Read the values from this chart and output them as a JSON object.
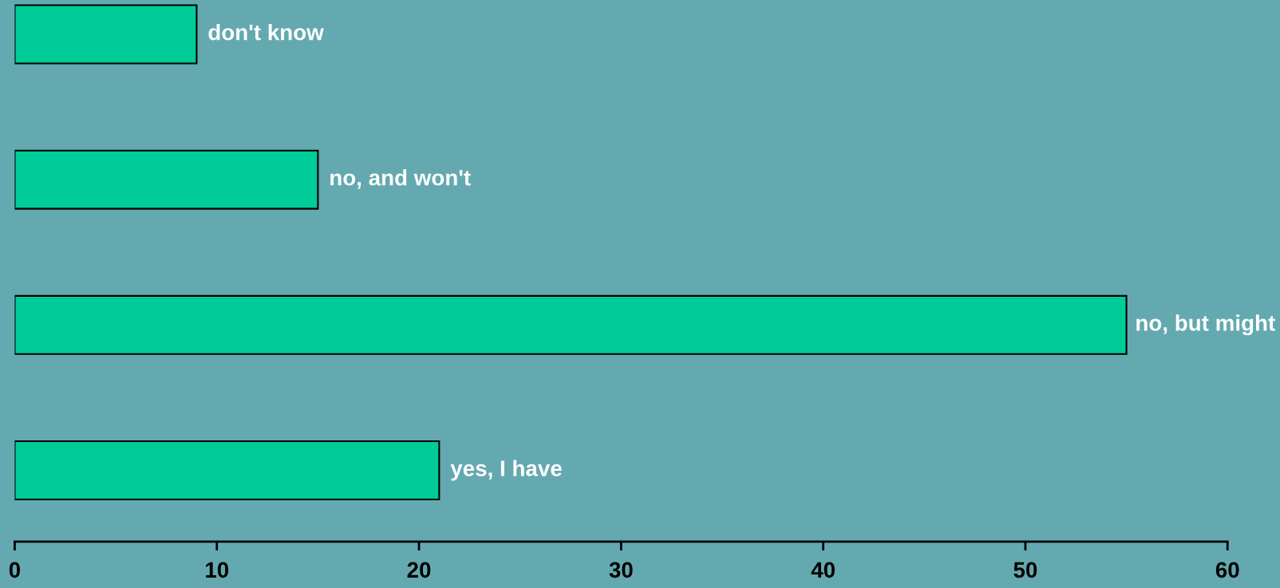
{
  "chart_data": {
    "type": "bar",
    "orientation": "horizontal",
    "categories": [
      "don't know",
      "no, and won't",
      "no, but might",
      "yes, I have"
    ],
    "values": [
      9,
      15,
      55,
      21
    ],
    "color": "#00cc99",
    "xlim": [
      0,
      60
    ],
    "xticks": [
      0,
      10,
      20,
      30,
      40,
      50,
      60
    ],
    "tick_labels": "x",
    "grid": false
  }
}
